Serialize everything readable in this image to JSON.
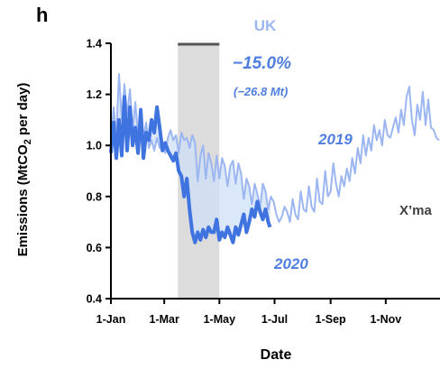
{
  "colors": {
    "series_2019": "#9cb6f2",
    "series_2020": "#3f73e0",
    "fill_between": "#cfe0f7",
    "lockdown_shade": "#dcdcdc",
    "lockdown_bar": "#555555"
  },
  "chart_data": {
    "type": "line",
    "panel_letter": "h",
    "title": "",
    "xlabel": "Date",
    "ylabel_parts": {
      "main": "Emissions (MtCO",
      "sub": "2",
      "tail": " per day)"
    },
    "x_tick_labels": [
      "1-Jan",
      "1-Mar",
      "1-May",
      "1-Jul",
      "1-Sep",
      "1-Nov"
    ],
    "x_ticks_day": [
      1,
      60,
      121,
      182,
      244,
      305
    ],
    "xlim_day": [
      1,
      365
    ],
    "y_tick_labels": [
      "0.4",
      "0.6",
      "0.8",
      "1.0",
      "1.2",
      "1.4"
    ],
    "y_ticks": [
      0.4,
      0.6,
      0.8,
      1.0,
      1.2,
      1.4
    ],
    "ylim": [
      0.4,
      1.4
    ],
    "shaded_period_day": [
      75,
      121
    ],
    "annotations": {
      "region": "UK",
      "pct_change": "−15.0%",
      "mt_change": "(−26.8 Mt)",
      "label_2019": "2019",
      "label_2020": "2020",
      "xmas": "X’ma"
    },
    "series": [
      {
        "name": "2019",
        "x_day": [
          1,
          4,
          7,
          10,
          13,
          16,
          19,
          22,
          25,
          28,
          31,
          34,
          37,
          40,
          43,
          46,
          49,
          52,
          55,
          58,
          61,
          64,
          67,
          70,
          73,
          76,
          79,
          82,
          85,
          88,
          91,
          94,
          97,
          100,
          103,
          106,
          109,
          112,
          115,
          118,
          121,
          124,
          127,
          130,
          133,
          136,
          139,
          142,
          145,
          148,
          151,
          154,
          157,
          160,
          163,
          166,
          169,
          172,
          175,
          178,
          181,
          184,
          187,
          190,
          193,
          196,
          199,
          202,
          205,
          208,
          211,
          214,
          217,
          220,
          223,
          226,
          229,
          232,
          235,
          238,
          241,
          244,
          247,
          250,
          253,
          256,
          259,
          262,
          265,
          268,
          271,
          274,
          277,
          280,
          283,
          286,
          289,
          292,
          295,
          298,
          301,
          304,
          307,
          310,
          313,
          316,
          319,
          322,
          325,
          328,
          331,
          334,
          337,
          340,
          343,
          346,
          349,
          352,
          355,
          358,
          361,
          364
        ],
        "values": [
          1.01,
          1.15,
          1.04,
          1.28,
          1.1,
          1.24,
          1.12,
          1.22,
          1.06,
          1.17,
          1.04,
          1.13,
          1.03,
          1.09,
          0.99,
          1.02,
          0.98,
          1.03,
          0.99,
          1.01,
          0.97,
          1.03,
          1.06,
          1.02,
          1.04,
          0.97,
          1.05,
          1.02,
          1.03,
          0.99,
          1.04,
          1.01,
          0.86,
          0.96,
          1.0,
          0.87,
          0.97,
          0.93,
          0.86,
          0.96,
          0.87,
          0.95,
          0.92,
          0.84,
          0.92,
          0.94,
          0.85,
          0.93,
          0.89,
          0.79,
          0.87,
          0.84,
          0.77,
          0.85,
          0.81,
          0.76,
          0.85,
          0.82,
          0.75,
          0.8,
          0.78,
          0.73,
          0.7,
          0.72,
          0.76,
          0.74,
          0.7,
          0.79,
          0.73,
          0.71,
          0.82,
          0.75,
          0.74,
          0.84,
          0.76,
          0.74,
          0.87,
          0.78,
          0.77,
          0.9,
          0.8,
          0.82,
          0.93,
          0.85,
          0.8,
          0.88,
          0.84,
          0.91,
          0.86,
          0.95,
          0.89,
          0.99,
          0.93,
          1.04,
          0.96,
          1.03,
          0.98,
          1.08,
          1.02,
          1.06,
          1.0,
          1.1,
          1.04,
          1.03,
          1.07,
          1.11,
          1.05,
          1.14,
          1.08,
          1.19,
          1.23,
          1.1,
          1.04,
          1.16,
          1.1,
          1.21,
          1.08,
          1.18,
          1.07,
          1.06,
          1.03,
          1.02
        ]
      },
      {
        "name": "2020",
        "x_day": [
          1,
          4,
          7,
          10,
          13,
          16,
          19,
          22,
          25,
          28,
          31,
          34,
          37,
          40,
          43,
          46,
          49,
          52,
          55,
          58,
          61,
          64,
          67,
          70,
          73,
          76,
          79,
          82,
          85,
          88,
          91,
          94,
          97,
          100,
          103,
          106,
          109,
          112,
          115,
          118,
          121,
          124,
          127,
          130,
          133,
          136,
          139,
          142,
          145,
          148,
          151,
          154,
          157,
          160,
          163,
          166,
          169,
          172,
          175,
          177
        ],
        "values": [
          0.97,
          1.09,
          0.95,
          1.1,
          0.96,
          1.19,
          0.98,
          1.15,
          1.0,
          1.07,
          0.97,
          1.14,
          0.95,
          1.05,
          1.02,
          1.1,
          1.05,
          1.15,
          1.07,
          0.98,
          1.01,
          0.98,
          0.96,
          0.94,
          0.97,
          0.9,
          0.88,
          0.8,
          0.87,
          0.75,
          0.66,
          0.62,
          0.66,
          0.63,
          0.67,
          0.64,
          0.68,
          0.66,
          0.66,
          0.71,
          0.63,
          0.66,
          0.64,
          0.68,
          0.65,
          0.62,
          0.68,
          0.65,
          0.69,
          0.73,
          0.66,
          0.7,
          0.75,
          0.72,
          0.78,
          0.74,
          0.71,
          0.75,
          0.7,
          0.68
        ]
      }
    ]
  }
}
